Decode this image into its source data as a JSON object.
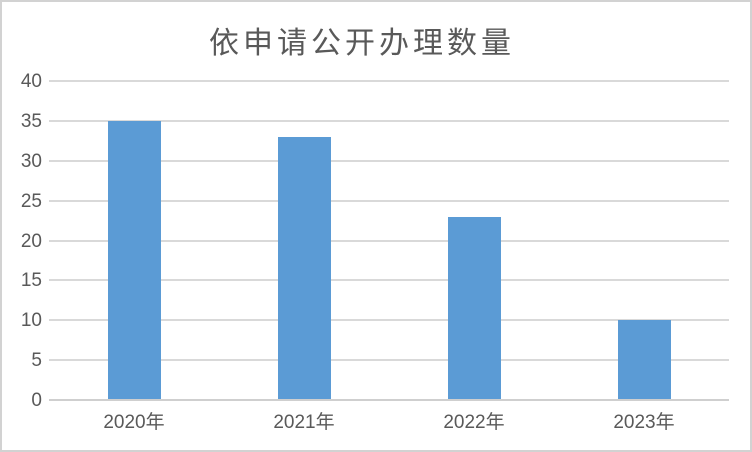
{
  "chart_data": {
    "type": "bar",
    "title": "依申请公开办理数量",
    "categories": [
      "2020年",
      "2021年",
      "2022年",
      "2023年"
    ],
    "values": [
      35,
      33,
      23,
      10
    ],
    "ylim": [
      0,
      40
    ],
    "yticks": [
      0,
      5,
      10,
      15,
      20,
      25,
      30,
      35,
      40
    ],
    "xlabel": "",
    "ylabel": "",
    "grid": true,
    "legend": "none",
    "colors": {
      "bar": "#5B9BD5",
      "gridline": "#D9D9D9",
      "axis_line": "#CFCFCF",
      "text": "#595959",
      "title": "#595959",
      "background": "#FFFFFF",
      "border": "#D2D2D2"
    }
  }
}
